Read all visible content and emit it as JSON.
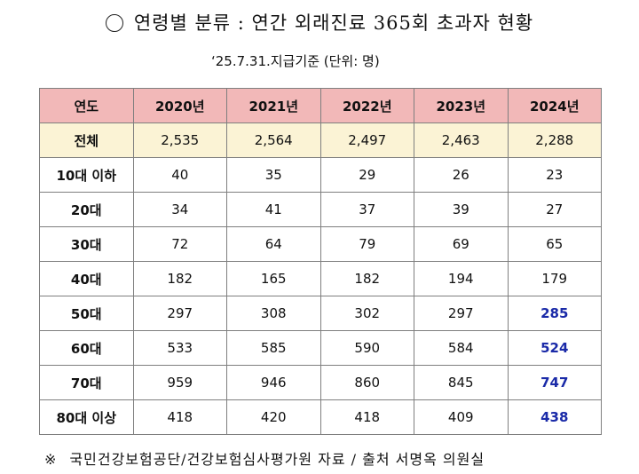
{
  "title": "연령별 분류 : 연간 외래진료 365회 초과자 현황",
  "basis": "‘25.7.31.지급기준 (단위: 명)",
  "table": {
    "headers": [
      "연도",
      "2020년",
      "2021년",
      "2022년",
      "2023년",
      "2024년"
    ],
    "rows": [
      {
        "label": "전체",
        "values": [
          "2,535",
          "2,564",
          "2,497",
          "2,463",
          "2,288"
        ]
      },
      {
        "label": "10대 이하",
        "values": [
          "40",
          "35",
          "29",
          "26",
          "23"
        ]
      },
      {
        "label": "20대",
        "values": [
          "34",
          "41",
          "37",
          "39",
          "27"
        ]
      },
      {
        "label": "30대",
        "values": [
          "72",
          "64",
          "79",
          "69",
          "65"
        ]
      },
      {
        "label": "40대",
        "values": [
          "182",
          "165",
          "182",
          "194",
          "179"
        ]
      },
      {
        "label": "50대",
        "values": [
          "297",
          "308",
          "302",
          "297",
          "285"
        ]
      },
      {
        "label": "60대",
        "values": [
          "533",
          "585",
          "590",
          "584",
          "524"
        ]
      },
      {
        "label": "70대",
        "values": [
          "959",
          "946",
          "860",
          "845",
          "747"
        ]
      },
      {
        "label": "80대 이상",
        "values": [
          "418",
          "420",
          "418",
          "409",
          "438"
        ]
      }
    ]
  },
  "source": {
    "mark": "※",
    "text": "국민건강보험공단/건강보험심사평가원 자료 / 출처 서명옥 의원실"
  },
  "colors": {
    "header_bg": "#f2b8b8",
    "total_row_bg": "#fbf3d5",
    "highlight_text": "#1a2aa8"
  }
}
